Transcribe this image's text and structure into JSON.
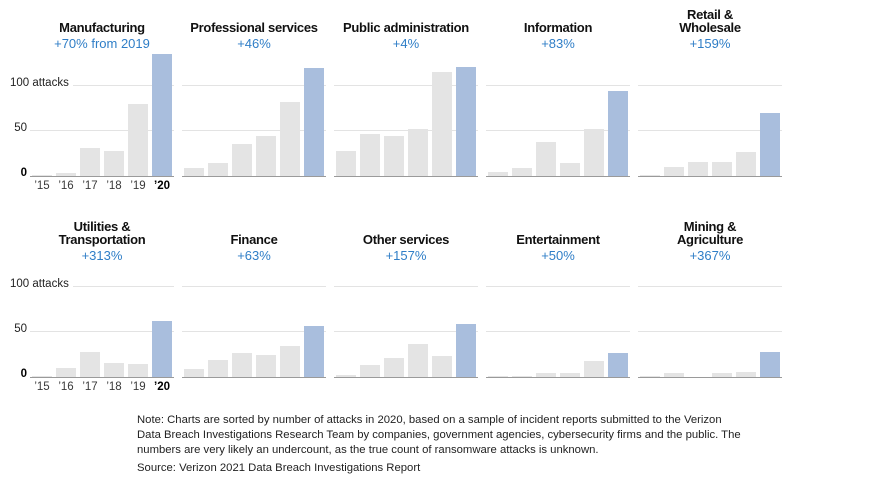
{
  "chart_data": {
    "type": "bar",
    "categories": [
      "’15",
      "’16",
      "’17",
      "’18",
      "’19",
      "’20"
    ],
    "y_axis": {
      "top_label": "100 attacks",
      "mid_label": "50",
      "zero_label": "0",
      "gridlines": [
        50,
        100
      ],
      "ylim": [
        0,
        140
      ]
    },
    "highlight_category": "’20",
    "colors": {
      "bar_gray": "#e4e4e4",
      "bar_highlight_blue": "#a9bedd",
      "change_text_blue": "#2f7ec7",
      "baseline": "#9a9a9a",
      "gridline": "#e3e3e3"
    },
    "rows": [
      [
        {
          "title": "Manufacturing",
          "change": "+70% from 2019",
          "values": [
            1,
            3,
            31,
            28,
            80,
            136
          ]
        },
        {
          "title": "Professional services",
          "change": "+46%",
          "values": [
            9,
            15,
            36,
            44,
            82,
            120
          ]
        },
        {
          "title": "Public administration",
          "change": "+4%",
          "values": [
            28,
            47,
            45,
            52,
            116,
            121
          ]
        },
        {
          "title": "Information",
          "change": "+83%",
          "values": [
            4,
            9,
            38,
            15,
            52,
            95
          ]
        },
        {
          "title": "Retail &\nWholesale",
          "change": "+159%",
          "values": [
            1,
            10,
            16,
            16,
            27,
            70
          ]
        }
      ],
      [
        {
          "title": "Utilities &\nTransportation",
          "change": "+313%",
          "values": [
            1,
            10,
            28,
            16,
            15,
            62
          ]
        },
        {
          "title": "Finance",
          "change": "+63%",
          "values": [
            9,
            19,
            27,
            24,
            35,
            57
          ]
        },
        {
          "title": "Other services",
          "change": "+157%",
          "values": [
            2,
            13,
            21,
            37,
            23,
            59
          ]
        },
        {
          "title": "Entertainment",
          "change": "+50%",
          "values": [
            1,
            1,
            4,
            4,
            18,
            27
          ]
        },
        {
          "title": "Mining &\nAgriculture",
          "change": "+367%",
          "values": [
            1,
            5,
            0,
            4,
            6,
            28
          ]
        }
      ]
    ]
  },
  "note": {
    "lines": [
      "Note: Charts are sorted by number of attacks in 2020, based on a sample of incident reports submitted to the Verizon",
      "Data Breach Investigations Research Team by companies, government agencies, cybersecurity firms and the public. The",
      "numbers are very likely an undercount, as the true count of ransomware attacks is unknown."
    ],
    "source": "Source: Verizon 2021 Data Breach Investigations Report"
  }
}
